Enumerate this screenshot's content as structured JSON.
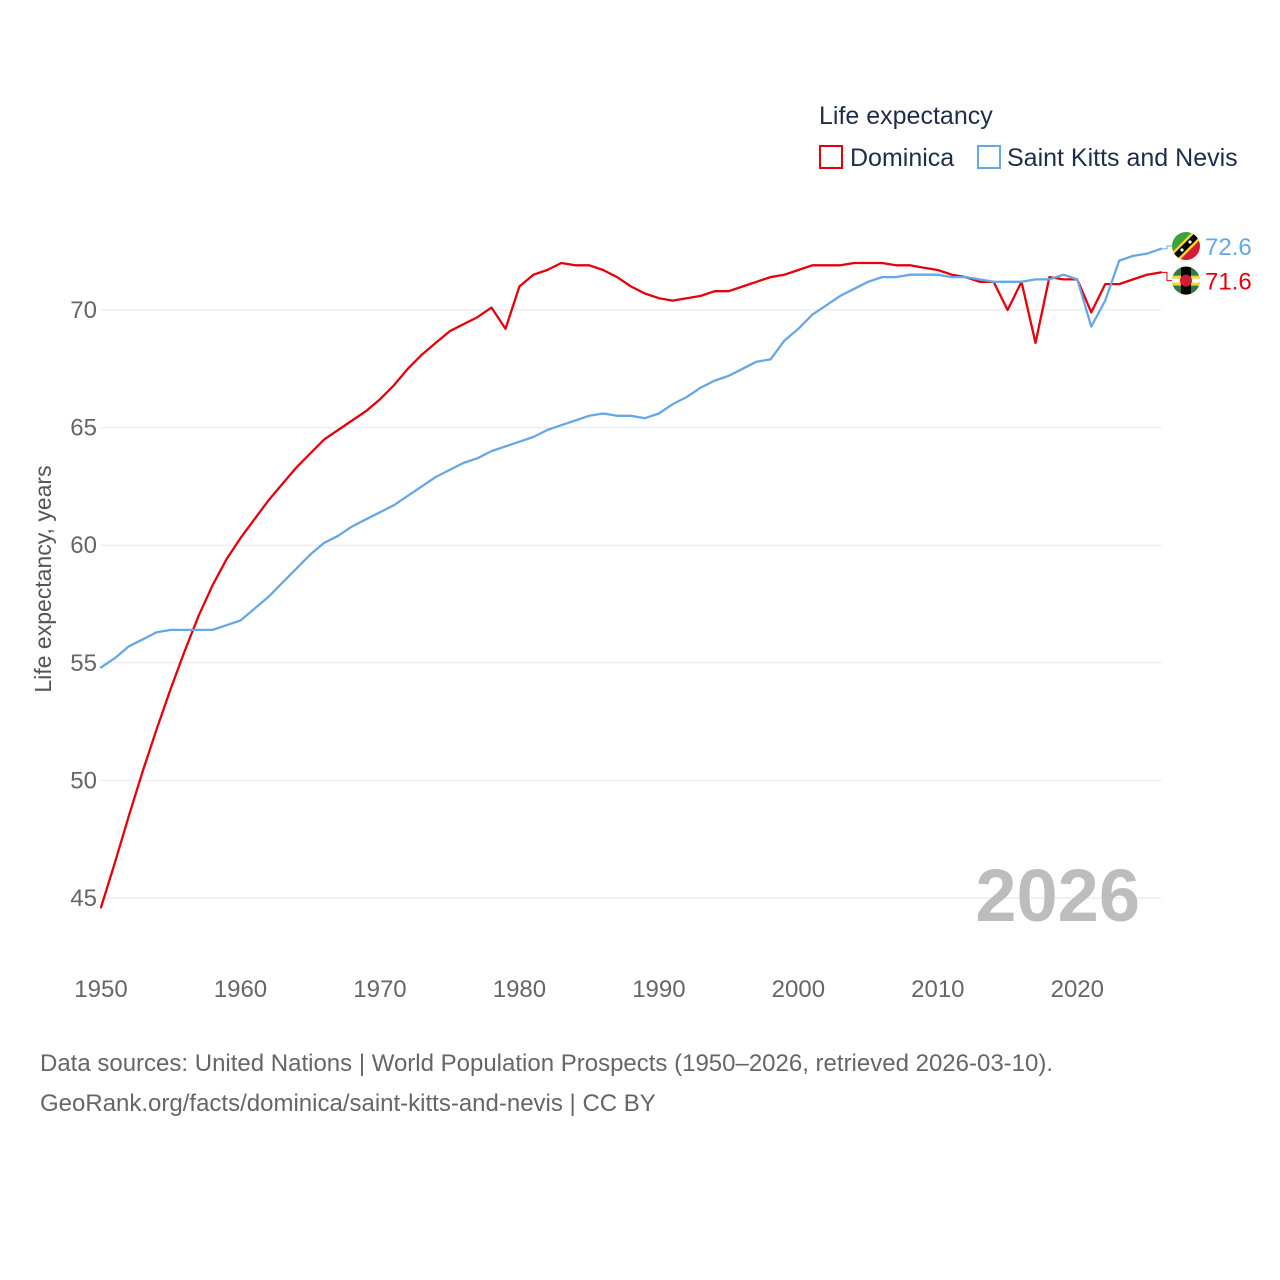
{
  "colors": {
    "dominica": "#e8000b",
    "skn": "#65a8e8",
    "grid": "#e6e6e6",
    "year": "#bdbdbd"
  },
  "legend": {
    "title": "Life expectancy"
  },
  "current_year": "2026",
  "footer": {
    "line1": "Data sources: United Nations | World Population Prospects (1950–2026, retrieved 2026-03-10).",
    "line2": "GeoRank.org/facts/dominica/saint-kitts-and-nevis | CC BY"
  },
  "chart_data": {
    "type": "line",
    "title": "Life expectancy",
    "xlabel": "",
    "ylabel": "Life expectancy, years",
    "xlim": [
      1950,
      2026
    ],
    "ylim": [
      44,
      74
    ],
    "yticks": [
      45,
      50,
      55,
      60,
      65,
      70
    ],
    "xticks": [
      1950,
      1960,
      1970,
      1980,
      1990,
      2000,
      2010,
      2020
    ],
    "legend_position": "top-right",
    "x": [
      1950,
      1951,
      1952,
      1953,
      1954,
      1955,
      1956,
      1957,
      1958,
      1959,
      1960,
      1961,
      1962,
      1963,
      1964,
      1965,
      1966,
      1967,
      1968,
      1969,
      1970,
      1971,
      1972,
      1973,
      1974,
      1975,
      1976,
      1977,
      1978,
      1979,
      1980,
      1981,
      1982,
      1983,
      1984,
      1985,
      1986,
      1987,
      1988,
      1989,
      1990,
      1991,
      1992,
      1993,
      1994,
      1995,
      1996,
      1997,
      1998,
      1999,
      2000,
      2001,
      2002,
      2003,
      2004,
      2005,
      2006,
      2007,
      2008,
      2009,
      2010,
      2011,
      2012,
      2013,
      2014,
      2015,
      2016,
      2017,
      2018,
      2019,
      2020,
      2021,
      2022,
      2023,
      2024,
      2025,
      2026
    ],
    "series": [
      {
        "name": "Dominica",
        "end_label": "71.6",
        "values": [
          44.6,
          46.5,
          48.5,
          50.4,
          52.2,
          53.9,
          55.5,
          57.0,
          58.3,
          59.4,
          60.3,
          61.1,
          61.9,
          62.6,
          63.3,
          63.9,
          64.5,
          64.9,
          65.3,
          65.7,
          66.2,
          66.8,
          67.5,
          68.1,
          68.6,
          69.1,
          69.4,
          69.7,
          70.1,
          69.2,
          71.0,
          71.5,
          71.7,
          72.0,
          71.9,
          71.9,
          71.7,
          71.4,
          71.0,
          70.7,
          70.5,
          70.4,
          70.5,
          70.6,
          70.8,
          70.8,
          71.0,
          71.2,
          71.4,
          71.5,
          71.7,
          71.9,
          71.9,
          71.9,
          72.0,
          72.0,
          72.0,
          71.9,
          71.9,
          71.8,
          71.7,
          71.5,
          71.4,
          71.2,
          71.2,
          70.0,
          71.2,
          68.6,
          71.4,
          71.3,
          71.3,
          69.9,
          71.1,
          71.1,
          71.3,
          71.5,
          71.6
        ]
      },
      {
        "name": "Saint Kitts and Nevis",
        "end_label": "72.6",
        "values": [
          54.8,
          55.2,
          55.7,
          56.0,
          56.3,
          56.4,
          56.4,
          56.4,
          56.4,
          56.6,
          56.8,
          57.3,
          57.8,
          58.4,
          59.0,
          59.6,
          60.1,
          60.4,
          60.8,
          61.1,
          61.4,
          61.7,
          62.1,
          62.5,
          62.9,
          63.2,
          63.5,
          63.7,
          64.0,
          64.2,
          64.4,
          64.6,
          64.9,
          65.1,
          65.3,
          65.5,
          65.6,
          65.5,
          65.5,
          65.4,
          65.6,
          66.0,
          66.3,
          66.7,
          67.0,
          67.2,
          67.5,
          67.8,
          67.9,
          68.7,
          69.2,
          69.8,
          70.2,
          70.6,
          70.9,
          71.2,
          71.4,
          71.4,
          71.5,
          71.5,
          71.5,
          71.4,
          71.4,
          71.3,
          71.2,
          71.2,
          71.2,
          71.3,
          71.3,
          71.5,
          71.3,
          69.3,
          70.4,
          72.1,
          72.3,
          72.4,
          72.6
        ]
      }
    ]
  }
}
